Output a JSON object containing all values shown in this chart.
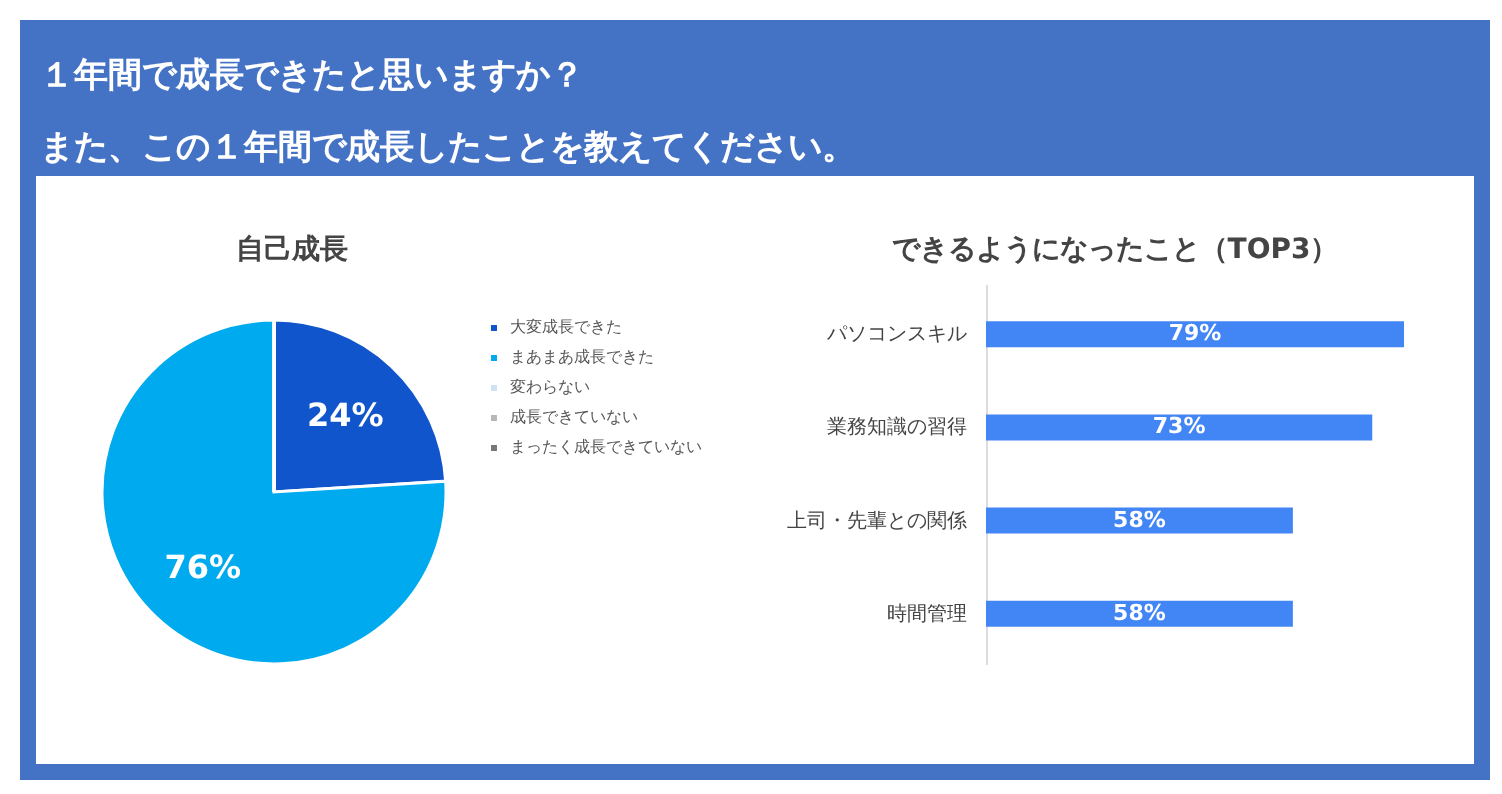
{
  "chart_data": [
    {
      "type": "other",
      "annotations": [
        "１年間で成長できたと思いますか？",
        "また、この１年間で成長したことを教えてください。"
      ]
    },
    {
      "type": "pie",
      "title": "自己成長",
      "categories": [
        "大変成長できた",
        "まあまあ成長できた",
        "変わらない",
        "成長できていない",
        "まったく成長できていない"
      ],
      "values": [
        24,
        76,
        0,
        0,
        0
      ],
      "colors": [
        "#1155cc",
        "#00aaee",
        "#cfe2f3",
        "#b7b7b7",
        "#777777"
      ],
      "value_labels": [
        "24%",
        "76%",
        null,
        null,
        null
      ],
      "legend": "right"
    },
    {
      "type": "bar",
      "orientation": "horizontal",
      "title": "できるようになったこと（TOP3）",
      "categories": [
        "パソコンスキル",
        "業務知識の習得",
        "上司・先輩との関係",
        "時間管理"
      ],
      "values": [
        79,
        73,
        58,
        58
      ],
      "value_labels": [
        "79%",
        "73%",
        "58%",
        "58%"
      ],
      "color": "#4285f4"
    }
  ]
}
